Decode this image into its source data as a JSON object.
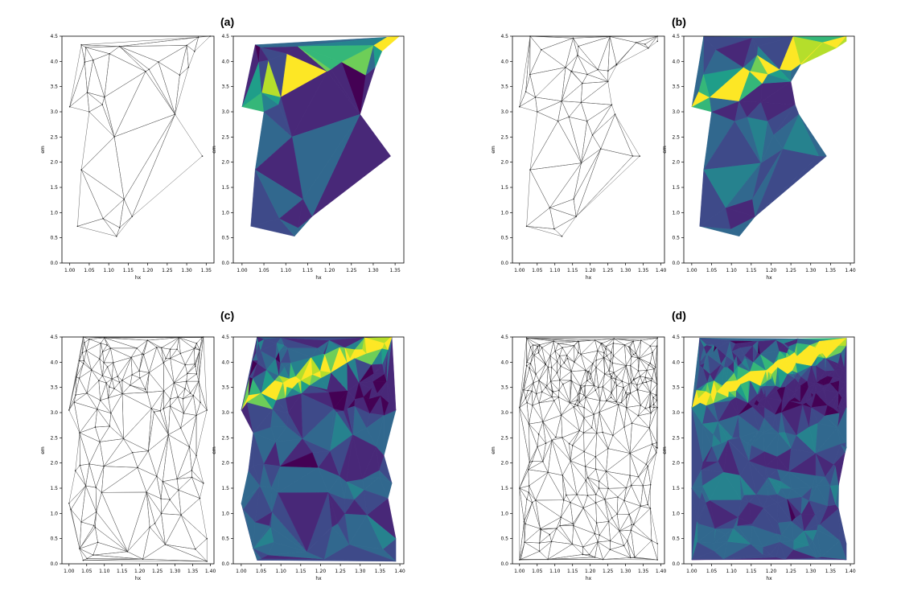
{
  "panels": [
    {
      "label": "(a)"
    },
    {
      "label": "(b)"
    },
    {
      "label": "(c)"
    },
    {
      "label": "(d)"
    }
  ],
  "chart_data": [
    {
      "panel": "(a)",
      "type": "triangulation",
      "xlabel": "hx",
      "ylabel": "em",
      "xlim": [
        0.98,
        1.37
      ],
      "ylim": [
        0.0,
        4.5
      ],
      "xticks": [
        "1.00",
        "1.05",
        "1.10",
        "1.15",
        "1.20",
        "1.25",
        "1.30",
        "1.35"
      ],
      "yticks": [
        "0.0",
        "0.5",
        "1.0",
        "1.5",
        "2.0",
        "2.5",
        "3.0",
        "3.5",
        "4.0",
        "4.5"
      ],
      "x_extent": [
        1.0,
        1.36
      ],
      "approx_sample_points": 30,
      "boundary": [
        [
          1.02,
          0.73
        ],
        [
          1.12,
          0.53
        ],
        [
          1.16,
          0.92
        ],
        [
          1.34,
          2.12
        ],
        [
          1.27,
          2.95
        ],
        [
          1.32,
          4.2
        ],
        [
          1.36,
          4.5
        ],
        [
          1.33,
          4.48
        ],
        [
          1.03,
          4.33
        ],
        [
          1.0,
          3.1
        ],
        [
          1.05,
          3.0
        ],
        [
          1.03,
          1.85
        ]
      ],
      "grid": false
    },
    {
      "panel": "(a)",
      "type": "heatmap",
      "colormap": "viridis",
      "xlabel": "hx",
      "ylabel": "em",
      "xlim": [
        0.98,
        1.37
      ],
      "ylim": [
        0.0,
        4.5
      ],
      "xticks": [
        "1.00",
        "1.05",
        "1.10",
        "1.15",
        "1.20",
        "1.25",
        "1.30",
        "1.35"
      ],
      "yticks": [
        "0.0",
        "0.5",
        "1.0",
        "1.5",
        "2.0",
        "2.5",
        "3.0",
        "3.5",
        "4.0",
        "4.5"
      ],
      "x_extent": [
        1.0,
        1.36
      ],
      "high_band": {
        "start": [
          1.0,
          3.2
        ],
        "end": [
          1.36,
          4.5
        ]
      },
      "grid": false
    },
    {
      "panel": "(b)",
      "type": "triangulation",
      "xlabel": "hx",
      "ylabel": "em",
      "xlim": [
        0.98,
        1.41
      ],
      "ylim": [
        0.0,
        4.5
      ],
      "xticks": [
        "1.00",
        "1.05",
        "1.10",
        "1.15",
        "1.20",
        "1.25",
        "1.30",
        "1.35",
        "1.40"
      ],
      "yticks": [
        "0.0",
        "0.5",
        "1.0",
        "1.5",
        "2.0",
        "2.5",
        "3.0",
        "3.5",
        "4.0",
        "4.5"
      ],
      "x_extent": [
        1.0,
        1.39
      ],
      "approx_sample_points": 45,
      "boundary": [
        [
          1.02,
          0.73
        ],
        [
          1.12,
          0.53
        ],
        [
          1.16,
          0.92
        ],
        [
          1.34,
          2.12
        ],
        [
          1.27,
          2.95
        ],
        [
          1.25,
          3.6
        ],
        [
          1.39,
          4.4
        ],
        [
          1.39,
          4.5
        ],
        [
          1.03,
          4.5
        ],
        [
          1.0,
          3.1
        ],
        [
          1.05,
          3.0
        ],
        [
          1.03,
          1.85
        ]
      ],
      "grid": false
    },
    {
      "panel": "(b)",
      "type": "heatmap",
      "colormap": "viridis",
      "xlabel": "hx",
      "ylabel": "em",
      "xlim": [
        0.98,
        1.41
      ],
      "ylim": [
        0.0,
        4.5
      ],
      "xticks": [
        "1.00",
        "1.05",
        "1.10",
        "1.15",
        "1.20",
        "1.25",
        "1.30",
        "1.35",
        "1.40"
      ],
      "yticks": [
        "0.0",
        "0.5",
        "1.0",
        "1.5",
        "2.0",
        "2.5",
        "3.0",
        "3.5",
        "4.0",
        "4.5"
      ],
      "x_extent": [
        1.0,
        1.39
      ],
      "high_band": {
        "start": [
          1.0,
          3.2
        ],
        "end": [
          1.39,
          4.5
        ]
      },
      "grid": false
    },
    {
      "panel": "(c)",
      "type": "triangulation",
      "xlabel": "hx",
      "ylabel": "em",
      "xlim": [
        0.98,
        1.41
      ],
      "ylim": [
        0.0,
        4.5
      ],
      "xticks": [
        "1.00",
        "1.05",
        "1.10",
        "1.15",
        "1.20",
        "1.25",
        "1.30",
        "1.35",
        "1.40"
      ],
      "yticks": [
        "0.0",
        "0.5",
        "1.0",
        "1.5",
        "2.0",
        "2.5",
        "3.0",
        "3.5",
        "4.0",
        "4.5"
      ],
      "x_extent": [
        1.0,
        1.4
      ],
      "approx_sample_points": 140,
      "boundary": [
        [
          1.04,
          0.07
        ],
        [
          1.39,
          0.05
        ],
        [
          1.39,
          0.5
        ],
        [
          1.37,
          1.3
        ],
        [
          1.38,
          1.6
        ],
        [
          1.36,
          2.15
        ],
        [
          1.39,
          3.05
        ],
        [
          1.38,
          4.5
        ],
        [
          1.04,
          4.5
        ],
        [
          1.0,
          3.05
        ],
        [
          1.03,
          2.6
        ],
        [
          1.0,
          1.2
        ],
        [
          1.03,
          0.3
        ]
      ],
      "grid": false
    },
    {
      "panel": "(c)",
      "type": "heatmap",
      "colormap": "viridis",
      "xlabel": "hx",
      "ylabel": "em",
      "xlim": [
        0.98,
        1.41
      ],
      "ylim": [
        0.0,
        4.5
      ],
      "xticks": [
        "1.00",
        "1.05",
        "1.10",
        "1.15",
        "1.20",
        "1.25",
        "1.30",
        "1.35",
        "1.40"
      ],
      "yticks": [
        "0.0",
        "0.5",
        "1.0",
        "1.5",
        "2.0",
        "2.5",
        "3.0",
        "3.5",
        "4.0",
        "4.5"
      ],
      "x_extent": [
        1.0,
        1.4
      ],
      "high_band": {
        "start": [
          1.0,
          3.2
        ],
        "end": [
          1.4,
          4.5
        ]
      },
      "grid": false
    },
    {
      "panel": "(d)",
      "type": "triangulation",
      "xlabel": "hx",
      "ylabel": "em",
      "xlim": [
        0.98,
        1.41
      ],
      "ylim": [
        0.0,
        4.5
      ],
      "xticks": [
        "1.00",
        "1.05",
        "1.10",
        "1.15",
        "1.20",
        "1.25",
        "1.30",
        "1.35",
        "1.40"
      ],
      "yticks": [
        "0.0",
        "0.5",
        "1.0",
        "1.5",
        "2.0",
        "2.5",
        "3.0",
        "3.5",
        "4.0",
        "4.5"
      ],
      "x_extent": [
        1.0,
        1.4
      ],
      "approx_sample_points": 300,
      "boundary": [
        [
          1.0,
          0.08
        ],
        [
          1.39,
          0.08
        ],
        [
          1.39,
          0.4
        ],
        [
          1.37,
          1.1
        ],
        [
          1.39,
          2.3
        ],
        [
          1.39,
          3.1
        ],
        [
          1.39,
          4.48
        ],
        [
          1.02,
          4.48
        ],
        [
          1.0,
          3.1
        ],
        [
          1.0,
          1.5
        ]
      ],
      "grid": false
    },
    {
      "panel": "(d)",
      "type": "heatmap",
      "colormap": "viridis",
      "xlabel": "hx",
      "ylabel": "em",
      "xlim": [
        0.98,
        1.41
      ],
      "ylim": [
        0.0,
        4.5
      ],
      "xticks": [
        "1.00",
        "1.05",
        "1.10",
        "1.15",
        "1.20",
        "1.25",
        "1.30",
        "1.35",
        "1.40"
      ],
      "yticks": [
        "0.0",
        "0.5",
        "1.0",
        "1.5",
        "2.0",
        "2.5",
        "3.0",
        "3.5",
        "4.0",
        "4.5"
      ],
      "x_extent": [
        1.0,
        1.4
      ],
      "high_band": {
        "start": [
          1.0,
          3.2
        ],
        "end": [
          1.4,
          4.5
        ]
      },
      "grid": false
    }
  ],
  "colors": {
    "viridis": [
      "#440154",
      "#482878",
      "#3e4a89",
      "#31688e",
      "#26828e",
      "#1f9e89",
      "#35b779",
      "#6ece58",
      "#b5de2b",
      "#fde725"
    ],
    "mesh_line": "#555555",
    "axis": "#000000"
  }
}
